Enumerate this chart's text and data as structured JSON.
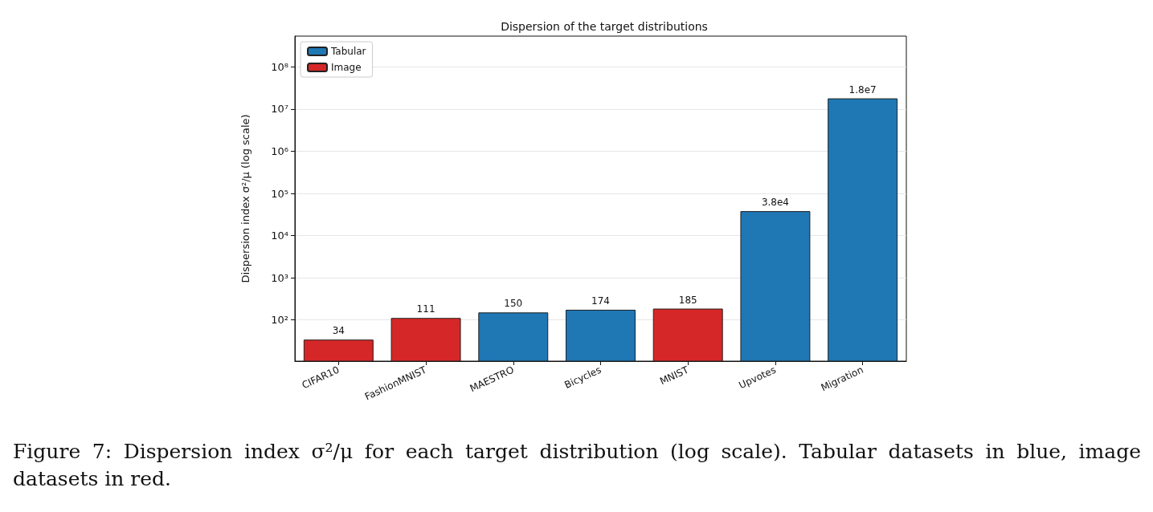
{
  "chart_data": {
    "type": "bar",
    "title": "Dispersion of the target distributions",
    "ylabel": "Dispersion index σ²/μ (log scale)",
    "categories": [
      "CIFAR10",
      "FashionMNIST",
      "MAESTRO",
      "Bicycles",
      "MNIST",
      "Upvotes",
      "Migration"
    ],
    "series": [
      {
        "name": "Tabular",
        "color": "#1f77b4",
        "values": [
          null,
          null,
          150,
          174,
          null,
          38000,
          18000000
        ],
        "value_labels": [
          null,
          null,
          "150",
          "174",
          null,
          "3.8e4",
          "1.8e7"
        ]
      },
      {
        "name": "Image",
        "color": "#d62728",
        "values": [
          34,
          111,
          null,
          null,
          185,
          null,
          null
        ],
        "value_labels": [
          "34",
          "111",
          null,
          null,
          "185",
          null,
          null
        ]
      }
    ],
    "log": true,
    "ylim": [
      10.5,
      540000000
    ],
    "yticks": [
      {
        "value": 100,
        "label": "10²"
      },
      {
        "value": 1000,
        "label": "10³"
      },
      {
        "value": 10000,
        "label": "10⁴"
      },
      {
        "value": 100000,
        "label": "10⁵"
      },
      {
        "value": 1000000,
        "label": "10⁶"
      },
      {
        "value": 10000000,
        "label": "10⁷"
      },
      {
        "value": 100000000,
        "label": "10⁸"
      }
    ],
    "grid": "y",
    "legend": "top left",
    "annotations": [
      "Figure 7: Dispersion index σ²/μ for each target distribution (log scale). Tabular datasets in blue, image datasets in red."
    ]
  }
}
